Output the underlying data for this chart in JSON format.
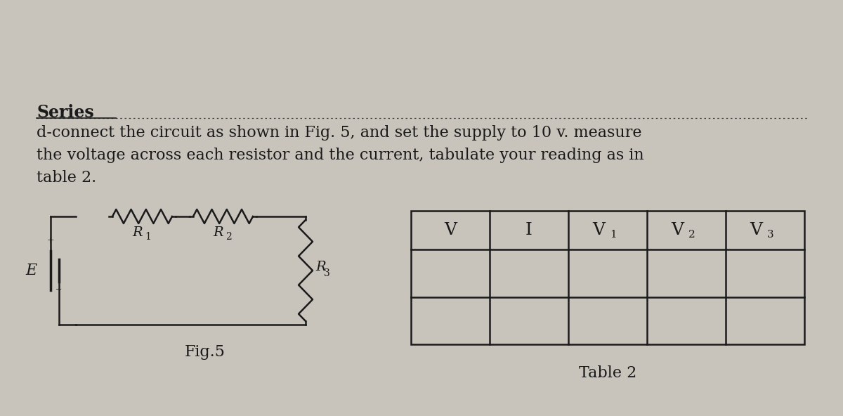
{
  "bg_color": "#c8c4bc",
  "text_color": "#1a1a1a",
  "title": "Series",
  "body_line1": "d-connect the circuit as shown in Fig. 5, and set the supply to 10 v. measure",
  "body_line2": "the voltage across each resistor and the current, tabulate your reading as in",
  "body_line3": "table 2.",
  "fig5_label": "Fig.5",
  "table2_label": "Table 2",
  "table_headers": [
    "V",
    "I",
    "V1",
    "V2",
    "V3"
  ],
  "table_rows": 2,
  "figsize": [
    12.0,
    5.92
  ],
  "dpi": 100
}
